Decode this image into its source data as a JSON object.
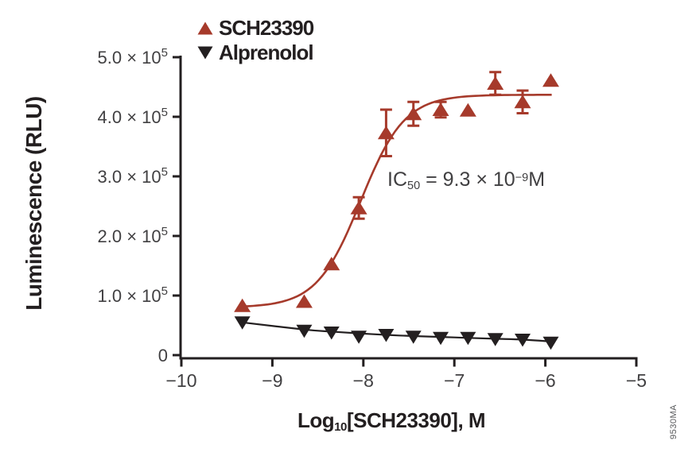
{
  "figure": {
    "bg": "#FFFFFF",
    "watermark": "9530MA",
    "accent_red": "#A63A2B",
    "ink": "#231F20",
    "tick_text_color": "#414042"
  },
  "legend": {
    "items": [
      {
        "label": "SCH23390",
        "marker": "triangle-up",
        "color": "#A63A2B"
      },
      {
        "label": "Alprenolol",
        "marker": "triangle-down",
        "color": "#231F20"
      }
    ]
  },
  "chart_data": {
    "type": "scatter",
    "title": "",
    "xlabel": "Log10[SCH23390], M",
    "xlabel_parts": [
      {
        "t": "Log"
      },
      {
        "t": "10",
        "pos": "sub"
      },
      {
        "t": "[SCH23390], M"
      }
    ],
    "ylabel": "Luminescence (RLU)",
    "xlim": [
      -10,
      -5
    ],
    "ylim": [
      0,
      500000
    ],
    "grid": false,
    "legend_position": "top-left-inside",
    "x_ticks": [
      {
        "v": -10,
        "label": "−10"
      },
      {
        "v": -9,
        "label": "−9"
      },
      {
        "v": -8,
        "label": "−8"
      },
      {
        "v": -7,
        "label": "−7"
      },
      {
        "v": -6,
        "label": "−6"
      },
      {
        "v": -5,
        "label": "−5"
      }
    ],
    "y_ticks": [
      {
        "v": 0,
        "m": "0",
        "e": ""
      },
      {
        "v": 100000,
        "m": "1.0 × 10",
        "e": "5"
      },
      {
        "v": 200000,
        "m": "2.0 × 10",
        "e": "5"
      },
      {
        "v": 300000,
        "m": "3.0 × 10",
        "e": "5"
      },
      {
        "v": 400000,
        "m": "4.0 × 10",
        "e": "5"
      },
      {
        "v": 500000,
        "m": "5.0 × 10",
        "e": "5"
      }
    ],
    "annotation": {
      "text": "IC50 = 9.3 × 10−9 M",
      "parts": [
        {
          "t": "IC"
        },
        {
          "t": "50",
          "pos": "sub"
        },
        {
          "t": " = 9.3 × 10"
        },
        {
          "t": "−9",
          "pos": "sup"
        },
        {
          "t": "M"
        }
      ]
    },
    "series": [
      {
        "name": "SCH23390",
        "color": "#A63A2B",
        "marker": "triangle-up",
        "x": [
          -9.33,
          -8.65,
          -8.35,
          -8.05,
          -7.75,
          -7.45,
          -7.15,
          -6.85,
          -6.55,
          -6.25,
          -5.94
        ],
        "y": [
          83000,
          90000,
          153000,
          247000,
          373000,
          405000,
          412000,
          411000,
          456000,
          425000,
          461000
        ],
        "yerr": [
          null,
          null,
          null,
          18000,
          39000,
          20000,
          13000,
          null,
          19000,
          19000,
          null
        ],
        "fit": {
          "type": "4PL",
          "bottom": 80000,
          "top": 437000,
          "log_ic50": -8.03,
          "hill": 1.8,
          "x_start": -9.33,
          "x_end": -5.92
        }
      },
      {
        "name": "Alprenolol",
        "color": "#231F20",
        "marker": "triangle-down",
        "x": [
          -9.33,
          -8.65,
          -8.35,
          -8.05,
          -7.75,
          -7.45,
          -7.15,
          -6.85,
          -6.55,
          -6.25,
          -5.94
        ],
        "y": [
          55000,
          41000,
          38000,
          31000,
          34000,
          31000,
          29000,
          29000,
          27000,
          26000,
          21000
        ],
        "yerr": [
          null,
          null,
          null,
          null,
          null,
          null,
          null,
          null,
          null,
          null,
          null
        ],
        "fit_points": [
          55000,
          43000,
          39500,
          36500,
          34000,
          32000,
          30500,
          29000,
          27500,
          26000,
          23000
        ]
      }
    ]
  }
}
